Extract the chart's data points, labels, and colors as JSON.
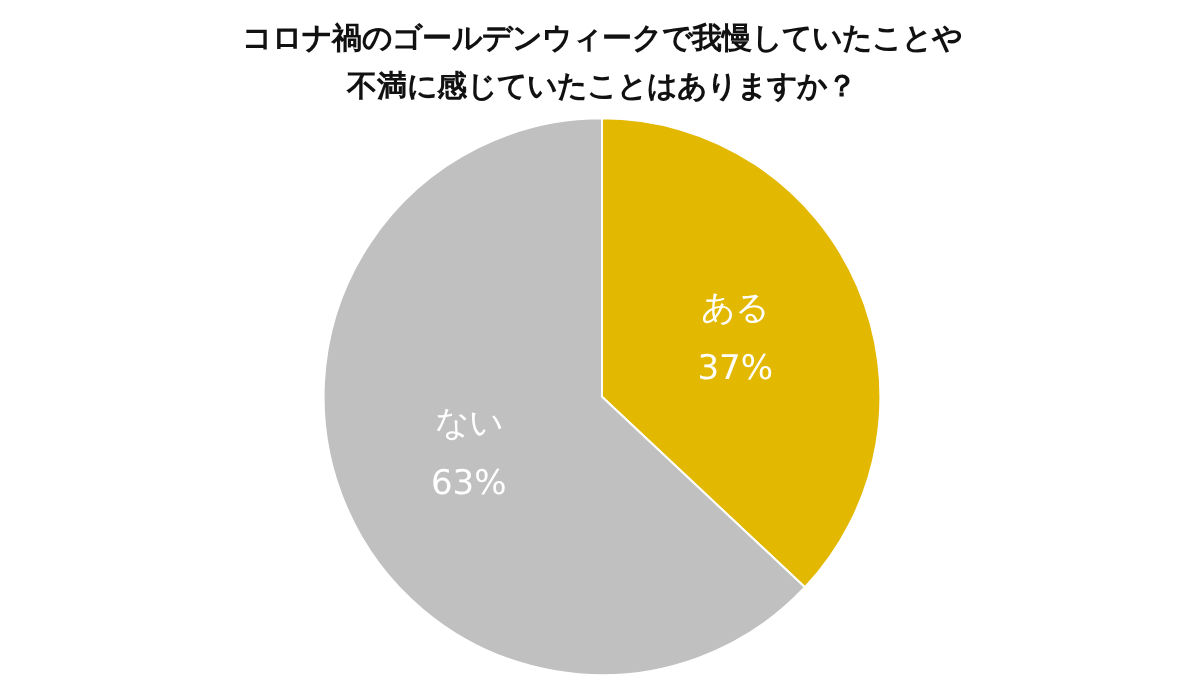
{
  "chart_data": {
    "type": "pie",
    "title": "コロナ禍のゴールデンウィークで我慢していたことや不満に感じていたことはありますか？",
    "categories": [
      "ある",
      "ない"
    ],
    "values": [
      37,
      63
    ],
    "colors": [
      "#e3b800",
      "#c0c0c0"
    ],
    "value_labels": [
      "37%",
      "63%"
    ],
    "legend": false
  }
}
